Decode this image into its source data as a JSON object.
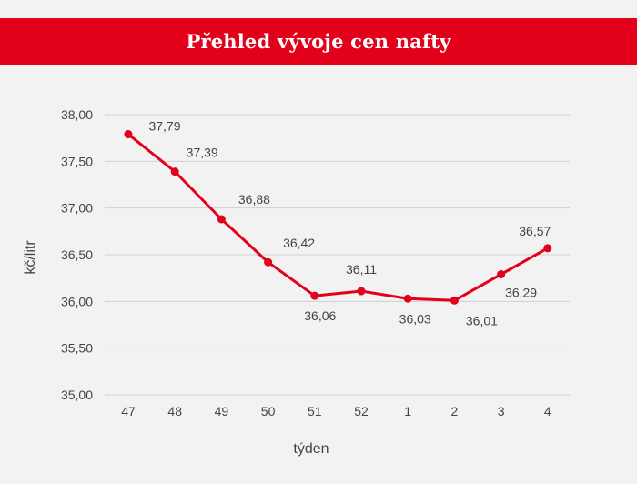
{
  "header": {
    "title": "Přehled vývoje cen nafty"
  },
  "colors": {
    "accent": "#e2001a",
    "background": "#f2f2f2",
    "grid": "#d0d0d0",
    "text": "#444444"
  },
  "chart_data": {
    "type": "line",
    "title": "Přehled vývoje cen nafty",
    "xlabel": "týden",
    "ylabel": "kč/litr",
    "categories": [
      "47",
      "48",
      "49",
      "50",
      "51",
      "52",
      "1",
      "2",
      "3",
      "4"
    ],
    "series": [
      {
        "values": [
          37.79,
          37.39,
          36.88,
          36.42,
          36.06,
          36.11,
          36.03,
          36.01,
          36.29,
          36.57
        ]
      }
    ],
    "data_labels": [
      "37,79",
      "37,39",
      "36,88",
      "36,42",
      "36,06",
      "36,11",
      "36,03",
      "36,01",
      "36,29",
      "36,57"
    ],
    "y_ticks": [
      "35,00",
      "35,50",
      "36,00",
      "36,50",
      "37,00",
      "37,50",
      "38,00"
    ],
    "ylim": [
      35,
      38
    ],
    "grid": true,
    "legend": "none"
  }
}
